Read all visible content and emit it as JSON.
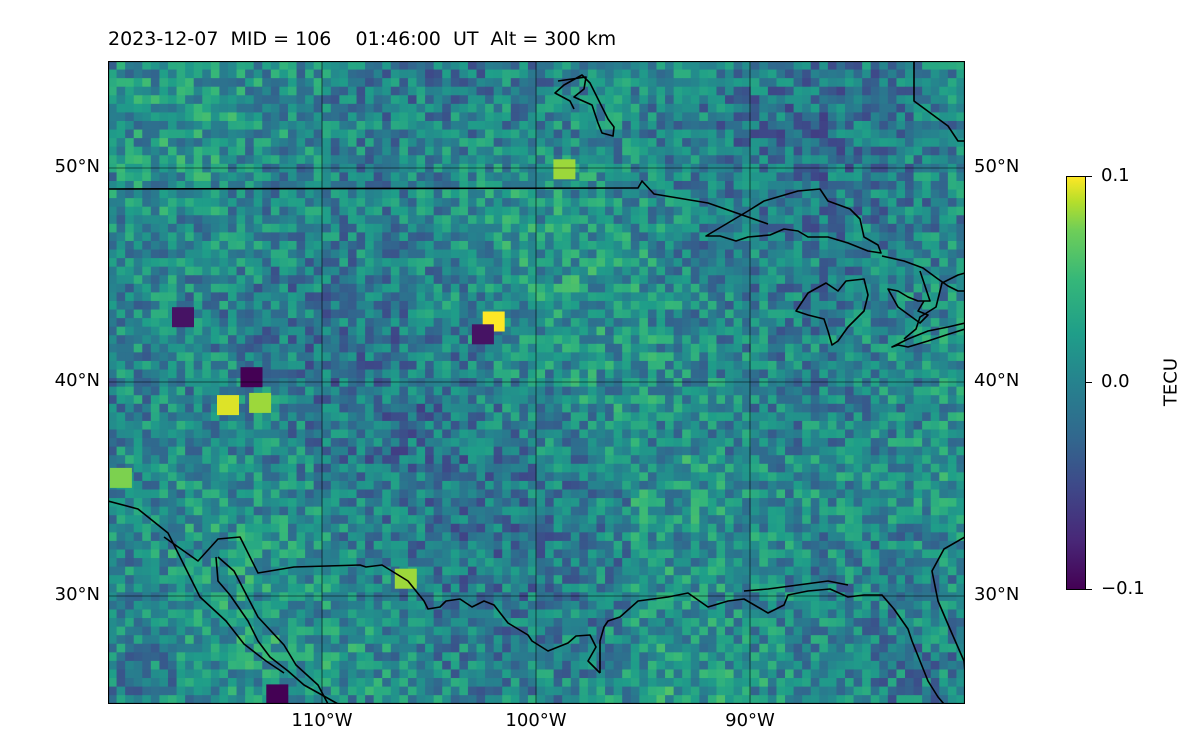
{
  "header": {
    "title": "2023-12-07  MID = 106    01:46:00  UT  Alt = 300 km"
  },
  "map": {
    "type": "heatmap",
    "projection": "PlateCarree",
    "region": "Continental United States",
    "lon_range": [
      -120,
      -80
    ],
    "lat_range": [
      25,
      55
    ],
    "grid": true,
    "coastlines": true,
    "borders": true,
    "lat_ticks": [
      "50°N",
      "40°N",
      "30°N"
    ],
    "lon_ticks": [
      "110°W",
      "100°W",
      "90°W"
    ],
    "value_range": [
      -0.1,
      0.1
    ],
    "colormap": "viridis",
    "hotspots": [
      {
        "lon": -102.0,
        "lat": 42.8,
        "value": 0.1
      },
      {
        "lon": -114.4,
        "lat": 38.9,
        "value": 0.09
      },
      {
        "lon": -112.9,
        "lat": 39.0,
        "value": 0.07
      },
      {
        "lon": -98.7,
        "lat": 49.9,
        "value": 0.07
      },
      {
        "lon": -106.1,
        "lat": 30.8,
        "value": 0.07
      },
      {
        "lon": -119.4,
        "lat": 35.5,
        "value": 0.06
      },
      {
        "lon": -113.3,
        "lat": 40.2,
        "value": -0.1
      },
      {
        "lon": -102.5,
        "lat": 42.2,
        "value": -0.09
      },
      {
        "lon": -112.1,
        "lat": 25.4,
        "value": -0.1
      },
      {
        "lon": -116.5,
        "lat": 43.0,
        "value": -0.09
      }
    ]
  },
  "colorbar": {
    "label": "TECU",
    "ticks": [
      "0.1",
      "0.0",
      "−0.1"
    ],
    "colors": [
      "#440154",
      "#482878",
      "#3e4989",
      "#31688e",
      "#26828e",
      "#1f9e89",
      "#35b779",
      "#6ece58",
      "#b5de2b",
      "#fde725"
    ]
  }
}
